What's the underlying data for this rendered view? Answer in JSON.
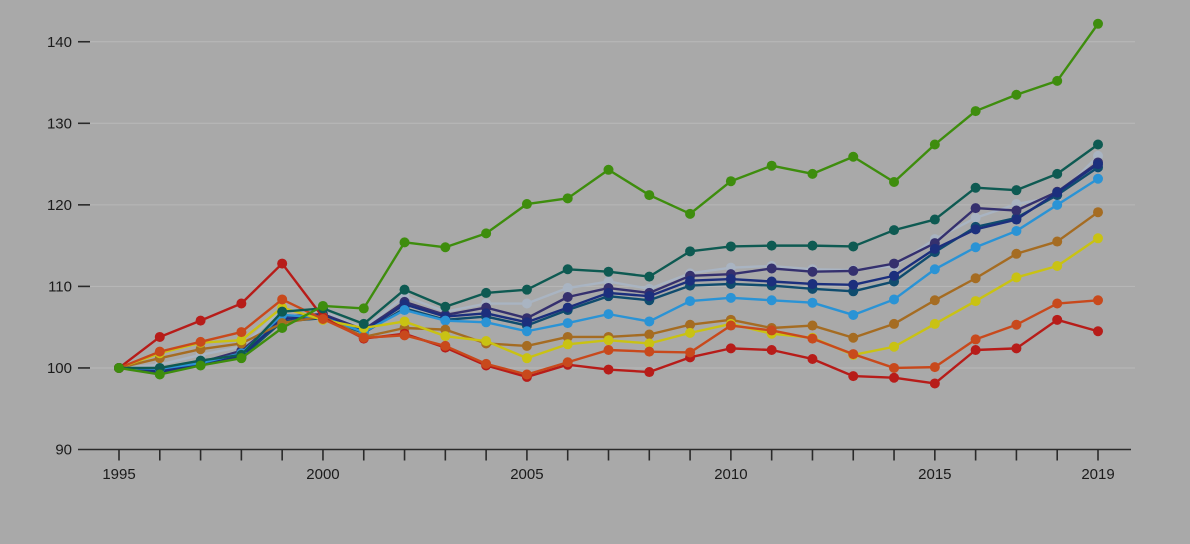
{
  "colors": {
    "background": "#a9a9a9",
    "gridline": "#b9b9b9",
    "axis_line": "#2a2a2a",
    "tick_mark": "#2a2a2a",
    "tick_label": "#1b1b1b"
  },
  "chart_data": {
    "type": "line",
    "title": "",
    "xlabel": "",
    "ylabel": "",
    "grid": true,
    "legend_position": "none",
    "point_markers": true,
    "xlim": [
      1995,
      2019
    ],
    "ylim": [
      90,
      146
    ],
    "y_ticks": [
      90,
      100,
      110,
      120,
      130,
      140
    ],
    "x_labeled_ticks": [
      1995,
      2000,
      2005,
      2010,
      2015,
      2019
    ],
    "x_tick_every_year": true,
    "x": [
      1995,
      1996,
      1997,
      1998,
      1999,
      2000,
      2001,
      2002,
      2003,
      2004,
      2005,
      2006,
      2007,
      2008,
      2009,
      2010,
      2011,
      2012,
      2013,
      2014,
      2015,
      2016,
      2017,
      2018,
      2019
    ],
    "series": [
      {
        "name": "series-gray",
        "color": "#a9b4c2",
        "values": [
          100,
          100.4,
          101.6,
          102.6,
          107.2,
          106.9,
          104.9,
          108.8,
          106.9,
          107.9,
          107.9,
          109.8,
          110.6,
          109.7,
          111.6,
          112.3,
          112.5,
          112.1,
          112.0,
          112.5,
          115.8,
          118.4,
          120.1,
          121.0,
          126.0
        ]
      },
      {
        "name": "series-petrol-blue",
        "color": "#0f4c6e",
        "values": [
          100,
          99.7,
          100.5,
          101.3,
          105.7,
          106.1,
          104.3,
          107.3,
          105.9,
          106.3,
          105.2,
          107.1,
          108.8,
          108.3,
          110.1,
          110.3,
          110.1,
          109.7,
          109.4,
          110.6,
          114.2,
          117.3,
          118.4,
          121.2,
          124.6
        ]
      },
      {
        "name": "series-indigo",
        "color": "#35306e",
        "values": [
          100,
          99.8,
          100.7,
          102.1,
          106.3,
          106.6,
          104.7,
          108.1,
          106.5,
          107.4,
          106.1,
          108.7,
          109.8,
          109.2,
          111.3,
          111.5,
          112.2,
          111.8,
          111.9,
          112.8,
          115.3,
          119.6,
          119.3,
          121.6,
          125.2
        ]
      },
      {
        "name": "series-navy",
        "color": "#1c2f7d",
        "values": [
          100,
          99.5,
          100.4,
          101.5,
          106.0,
          106.4,
          104.5,
          107.8,
          106.3,
          106.7,
          105.6,
          107.4,
          109.2,
          108.8,
          110.7,
          110.9,
          110.6,
          110.3,
          110.2,
          111.3,
          114.6,
          117.0,
          118.2,
          121.5,
          125.0
        ]
      },
      {
        "name": "series-light-blue",
        "color": "#2a93d5",
        "values": [
          100,
          99.9,
          100.6,
          101.8,
          106.5,
          106.2,
          104.4,
          107.1,
          105.8,
          105.6,
          104.5,
          105.5,
          106.6,
          105.7,
          108.2,
          108.6,
          108.3,
          108.0,
          106.5,
          108.4,
          112.1,
          114.8,
          116.8,
          120.0,
          123.2
        ]
      },
      {
        "name": "series-brown",
        "color": "#a56c22",
        "values": [
          100,
          101.2,
          102.3,
          103.0,
          105.5,
          106.3,
          103.8,
          104.9,
          104.7,
          103.0,
          102.7,
          103.8,
          103.8,
          104.1,
          105.3,
          105.9,
          104.9,
          105.2,
          103.7,
          105.4,
          108.3,
          111.0,
          114.0,
          115.5,
          119.1
        ]
      },
      {
        "name": "series-yellow",
        "color": "#c9c213",
        "values": [
          100,
          101.8,
          103.1,
          103.4,
          107.4,
          105.9,
          104.9,
          105.7,
          103.9,
          103.3,
          101.2,
          102.9,
          103.4,
          103.0,
          104.3,
          105.4,
          104.2,
          103.7,
          101.6,
          102.6,
          105.4,
          108.2,
          111.1,
          112.5,
          115.9
        ]
      },
      {
        "name": "series-dark-red",
        "color": "#b71c19",
        "values": [
          100,
          103.8,
          105.8,
          107.9,
          112.8,
          106.2,
          103.6,
          104.2,
          102.5,
          100.3,
          98.9,
          100.4,
          99.8,
          99.5,
          101.3,
          102.4,
          102.2,
          101.1,
          99.0,
          98.8,
          98.1,
          102.2,
          102.4,
          105.9,
          104.5
        ]
      },
      {
        "name": "series-orange-red",
        "color": "#c8491c",
        "values": [
          100,
          102.0,
          103.2,
          104.4,
          108.4,
          106.0,
          103.7,
          104.0,
          102.7,
          100.5,
          99.2,
          100.7,
          102.2,
          102.0,
          101.9,
          105.2,
          104.6,
          103.6,
          101.7,
          100.0,
          100.1,
          103.5,
          105.3,
          107.9,
          108.3
        ]
      },
      {
        "name": "series-dark-teal",
        "color": "#0e5a52",
        "values": [
          100,
          100.0,
          100.9,
          101.6,
          106.9,
          107.3,
          105.4,
          109.6,
          107.5,
          109.2,
          109.6,
          112.1,
          111.8,
          111.2,
          114.3,
          114.9,
          115.0,
          115.0,
          114.9,
          116.9,
          118.2,
          122.1,
          121.8,
          123.8,
          127.4
        ]
      },
      {
        "name": "series-green",
        "color": "#3e8d0d",
        "values": [
          100,
          99.2,
          100.3,
          101.2,
          104.9,
          107.6,
          107.3,
          115.4,
          114.8,
          116.5,
          120.1,
          120.8,
          124.3,
          121.2,
          118.9,
          122.9,
          124.8,
          123.8,
          125.9,
          122.8,
          127.4,
          131.5,
          133.5,
          135.2,
          142.2
        ]
      }
    ]
  }
}
